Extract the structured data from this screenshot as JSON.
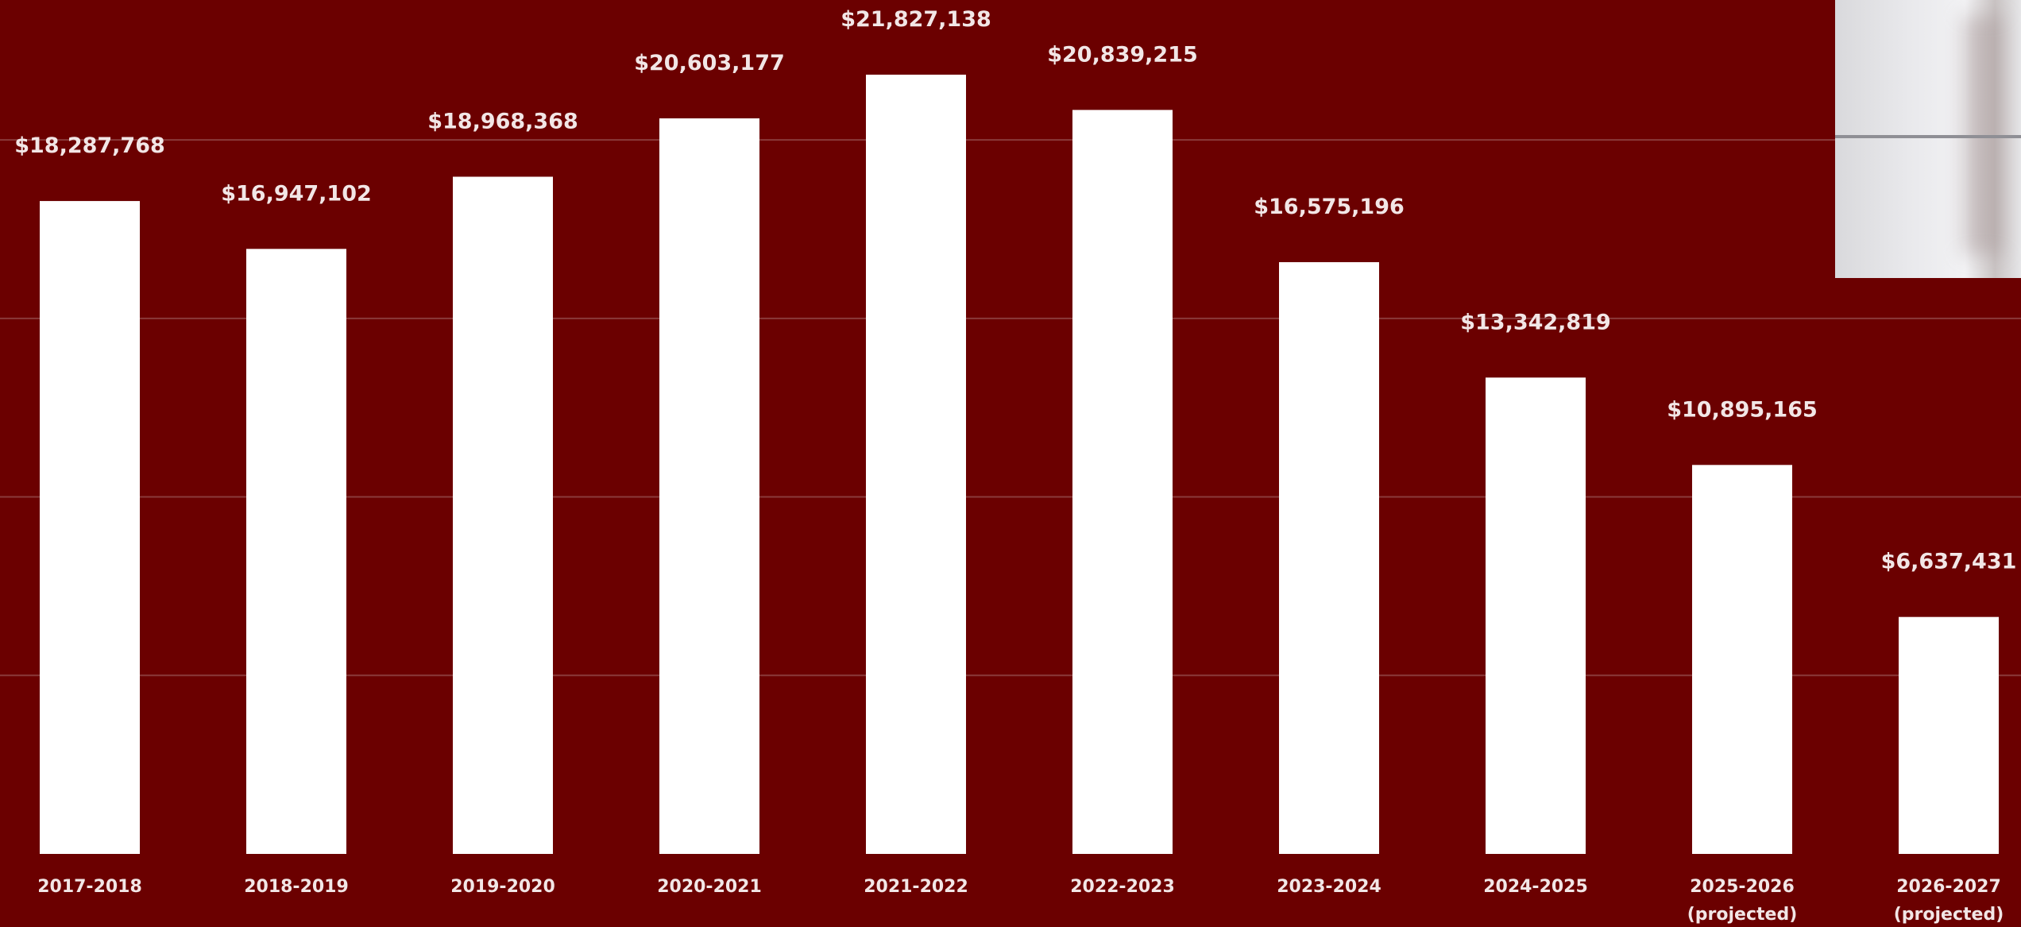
{
  "colors": {
    "background": "#6b0000",
    "bar": "#ffffff",
    "text": "#f2e6e6",
    "gridline": "#8a3a3a"
  },
  "thumbnail": {
    "icon": "video-thumbnail"
  },
  "chart_data": {
    "type": "bar",
    "title": "",
    "xlabel": "",
    "ylabel": "",
    "grid": true,
    "legend": "none",
    "ylim": [
      0,
      25000000
    ],
    "categories": [
      [
        "2017-2018"
      ],
      [
        "2018-2019"
      ],
      [
        "2019-2020"
      ],
      [
        "2020-2021"
      ],
      [
        "2021-2022"
      ],
      [
        "2022-2023"
      ],
      [
        "2023-2024"
      ],
      [
        "2024-2025"
      ],
      [
        "2025-2026",
        "(projected)"
      ],
      [
        "2026-2027",
        "(projected)"
      ]
    ],
    "values": [
      18287768,
      16947102,
      18968368,
      20603177,
      21827138,
      20839215,
      16575196,
      13342819,
      10895165,
      6637431
    ],
    "data_labels": [
      "$18,287,768",
      "$16,947,102",
      "$18,968,368",
      "$20,603,177",
      "$21,827,138",
      "$20,839,215",
      "$16,575,196",
      "$13,342,819",
      "$10,895,165",
      "$6,637,431"
    ]
  }
}
